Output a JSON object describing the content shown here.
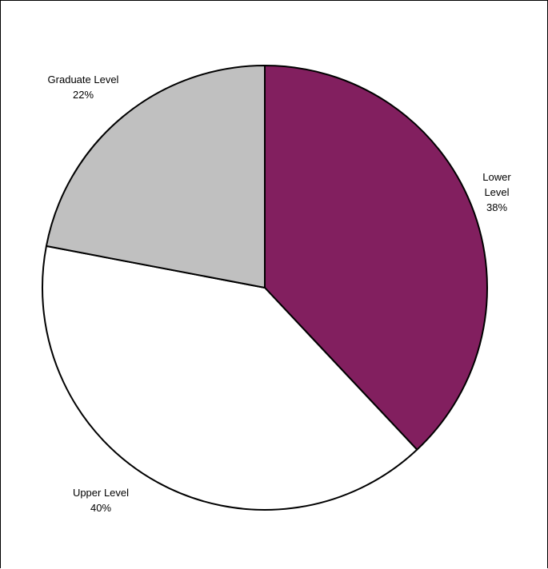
{
  "chart_data": {
    "type": "pie",
    "start_angle_deg": 0,
    "direction": "clockwise",
    "slices": [
      {
        "label": "Lower Level",
        "label_lines": [
          "Lower",
          "Level"
        ],
        "percent_text": "38%",
        "value": 38,
        "color": "#821f5f"
      },
      {
        "label": "Upper Level",
        "label_lines": [
          "Upper Level"
        ],
        "percent_text": "40%",
        "value": 40,
        "color": "#ffffff"
      },
      {
        "label": "Graduate Level",
        "label_lines": [
          "Graduate Level"
        ],
        "percent_text": "22%",
        "value": 22,
        "color": "#c0c0c0"
      }
    ],
    "stroke_color": "#000000"
  }
}
